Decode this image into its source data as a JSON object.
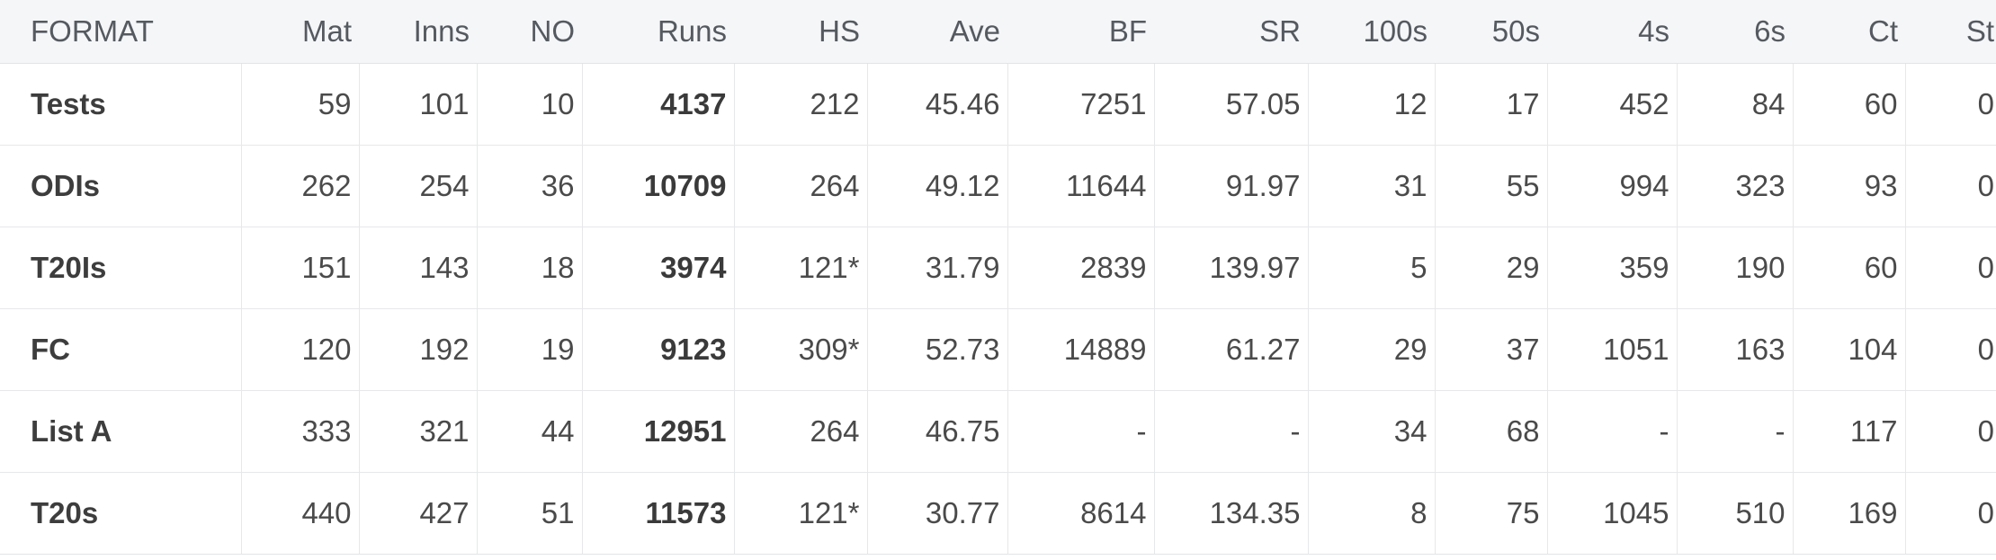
{
  "table": {
    "headers": [
      "FORMAT",
      "Mat",
      "Inns",
      "NO",
      "Runs",
      "HS",
      "Ave",
      "BF",
      "SR",
      "100s",
      "50s",
      "4s",
      "6s",
      "Ct",
      "St"
    ],
    "rows": [
      [
        "Tests",
        "59",
        "101",
        "10",
        "4137",
        "212",
        "45.46",
        "7251",
        "57.05",
        "12",
        "17",
        "452",
        "84",
        "60",
        "0"
      ],
      [
        "ODIs",
        "262",
        "254",
        "36",
        "10709",
        "264",
        "49.12",
        "11644",
        "91.97",
        "31",
        "55",
        "994",
        "323",
        "93",
        "0"
      ],
      [
        "T20Is",
        "151",
        "143",
        "18",
        "3974",
        "121*",
        "31.79",
        "2839",
        "139.97",
        "5",
        "29",
        "359",
        "190",
        "60",
        "0"
      ],
      [
        "FC",
        "120",
        "192",
        "19",
        "9123",
        "309*",
        "52.73",
        "14889",
        "61.27",
        "29",
        "37",
        "1051",
        "163",
        "104",
        "0"
      ],
      [
        "List A",
        "333",
        "321",
        "44",
        "12951",
        "264",
        "46.75",
        "-",
        "-",
        "34",
        "68",
        "-",
        "-",
        "117",
        "0"
      ],
      [
        "T20s",
        "440",
        "427",
        "51",
        "11573",
        "121*",
        "30.77",
        "8614",
        "134.35",
        "8",
        "75",
        "1045",
        "510",
        "169",
        "0"
      ]
    ]
  }
}
